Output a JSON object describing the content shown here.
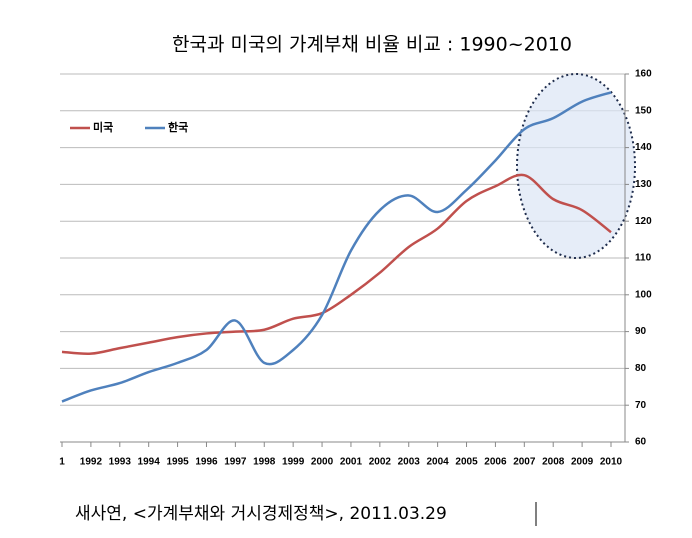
{
  "chart_data": {
    "type": "line",
    "title": "한국과 미국의 가계부채 비율 비교 : 1990~2010",
    "categories": [
      "1",
      "1992",
      "1993",
      "1994",
      "1995",
      "1996",
      "1997",
      "1998",
      "1999",
      "2000",
      "2001",
      "2002",
      "2003",
      "2004",
      "2005",
      "2006",
      "2007",
      "2008",
      "2009",
      "2010"
    ],
    "series": [
      {
        "name": "미국",
        "color": "#c0504d",
        "values": [
          84.5,
          84,
          85.5,
          87,
          88.5,
          89.5,
          90,
          90.5,
          93.5,
          95,
          100,
          106,
          113,
          118,
          125.5,
          129.5,
          132.5,
          126,
          123,
          117
        ]
      },
      {
        "name": "한국",
        "color": "#4f81bd",
        "values": [
          71,
          74,
          76,
          79,
          81.5,
          85,
          93,
          81.5,
          85,
          94.5,
          112,
          123,
          127,
          122.5,
          128.5,
          136.5,
          145,
          148,
          152.5,
          155
        ]
      }
    ],
    "ylim": [
      60,
      160
    ],
    "yticks": [
      60,
      70,
      80,
      90,
      100,
      110,
      120,
      130,
      140,
      150,
      160
    ],
    "grid": true,
    "legend": "top-left",
    "caption": "새사연, <가계부채와 거시경제정책>, 2011.03.29"
  }
}
